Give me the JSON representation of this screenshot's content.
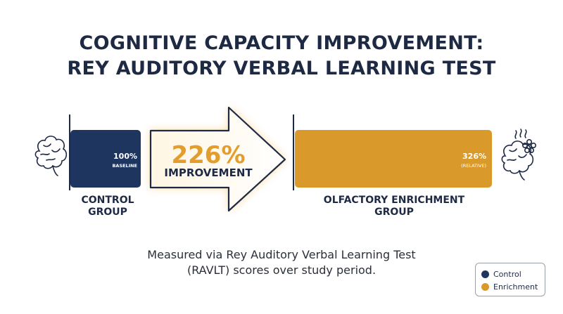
{
  "title_line1": "COGNITIVE CAPACITY IMPROVEMENT:",
  "title_line2": "REY AUDITORY VERBAL LEARNING TEST",
  "caption_line1": "Measured via Rey Auditory Verbal Learning Test",
  "caption_line2": "(RAVLT) scores over study period.",
  "colors": {
    "control": "#1e3560",
    "enrichment": "#d99a2b",
    "text": "#1e2a44"
  },
  "chart_data": {
    "type": "bar",
    "orientation": "horizontal",
    "categories": [
      "CONTROL GROUP",
      "OLFACTORY ENRICHMENT GROUP"
    ],
    "values": [
      100,
      326
    ],
    "unit": "%",
    "category_label_lines": [
      [
        "CONTROL",
        "GROUP"
      ],
      [
        "OLFACTORY ENRICHMENT",
        "GROUP"
      ]
    ],
    "value_labels": [
      {
        "value": "100%",
        "sub": "BASELINE"
      },
      {
        "value": "326%",
        "sub": "(RELATIVE)"
      }
    ],
    "annotation": {
      "value": "226%",
      "label": "IMPROVEMENT",
      "shape": "arrow-right"
    },
    "legend": {
      "position": "bottom-right",
      "entries": [
        {
          "label": "Control",
          "color": "#1e3560"
        },
        {
          "label": "Enrichment",
          "color": "#d99a2b"
        }
      ]
    },
    "icons": [
      "brain-icon",
      "brain-flower-icon"
    ]
  }
}
